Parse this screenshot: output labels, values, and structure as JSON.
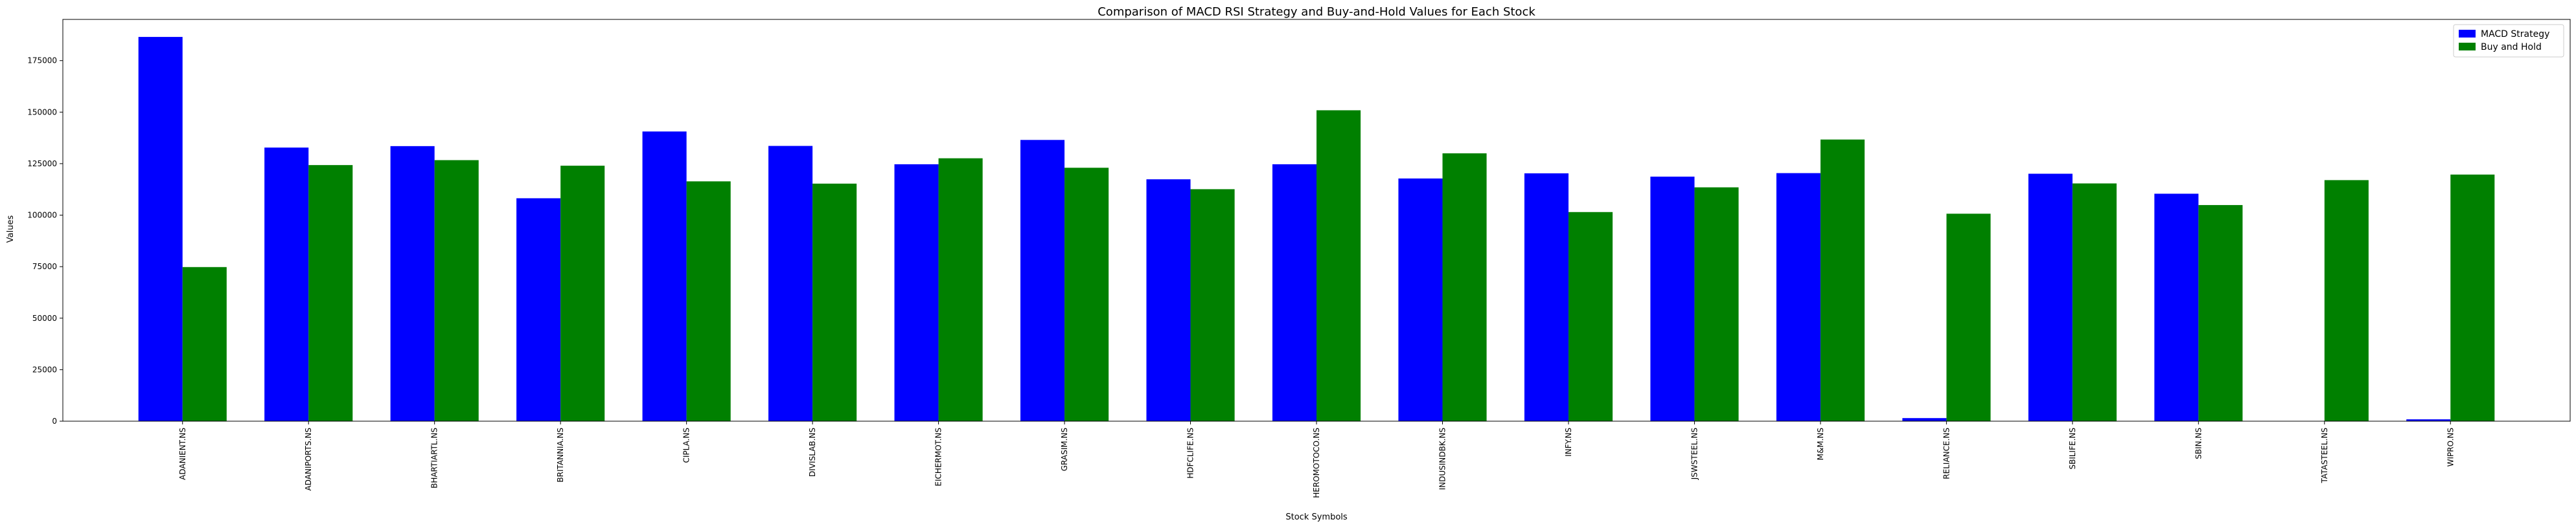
{
  "chart_data": {
    "type": "bar",
    "title": "Comparison of MACD RSI Strategy and Buy-and-Hold Values for Each Stock",
    "xlabel": "Stock Symbols",
    "ylabel": "Values",
    "ylim": [
      0,
      195000
    ],
    "yticks": [
      0,
      25000,
      50000,
      75000,
      100000,
      125000,
      150000,
      175000
    ],
    "legend_position": "top-right",
    "grid": false,
    "categories": [
      "ADANIENT.NS",
      "ADANIPORTS.NS",
      "BHARTIARTL.NS",
      "BRITANNIA.NS",
      "CIPLA.NS",
      "DIVISLAB.NS",
      "EICHERMOT.NS",
      "GRASIM.NS",
      "HDFCLIFE.NS",
      "HEROMOTOCO.NS",
      "INDUSINDBK.NS",
      "INFY.NS",
      "JSWSTEEL.NS",
      "M&M.NS",
      "RELIANCE.NS",
      "SBILIFE.NS",
      "SBIN.NS",
      "TATASTEEL.NS",
      "WIPRO.NS"
    ],
    "series": [
      {
        "name": "MACD Strategy",
        "color": "#0000ff",
        "values": [
          186500,
          132800,
          133500,
          108200,
          140600,
          133600,
          124700,
          136500,
          117400,
          124700,
          117800,
          120300,
          118700,
          120400,
          1500,
          120100,
          110400,
          0,
          900
        ]
      },
      {
        "name": "Buy and Hold",
        "color": "#008000",
        "values": [
          74800,
          124300,
          126700,
          124000,
          116400,
          115300,
          127600,
          123000,
          112600,
          150900,
          130000,
          101500,
          113500,
          136700,
          100700,
          115400,
          104900,
          117000,
          119700
        ]
      }
    ]
  }
}
